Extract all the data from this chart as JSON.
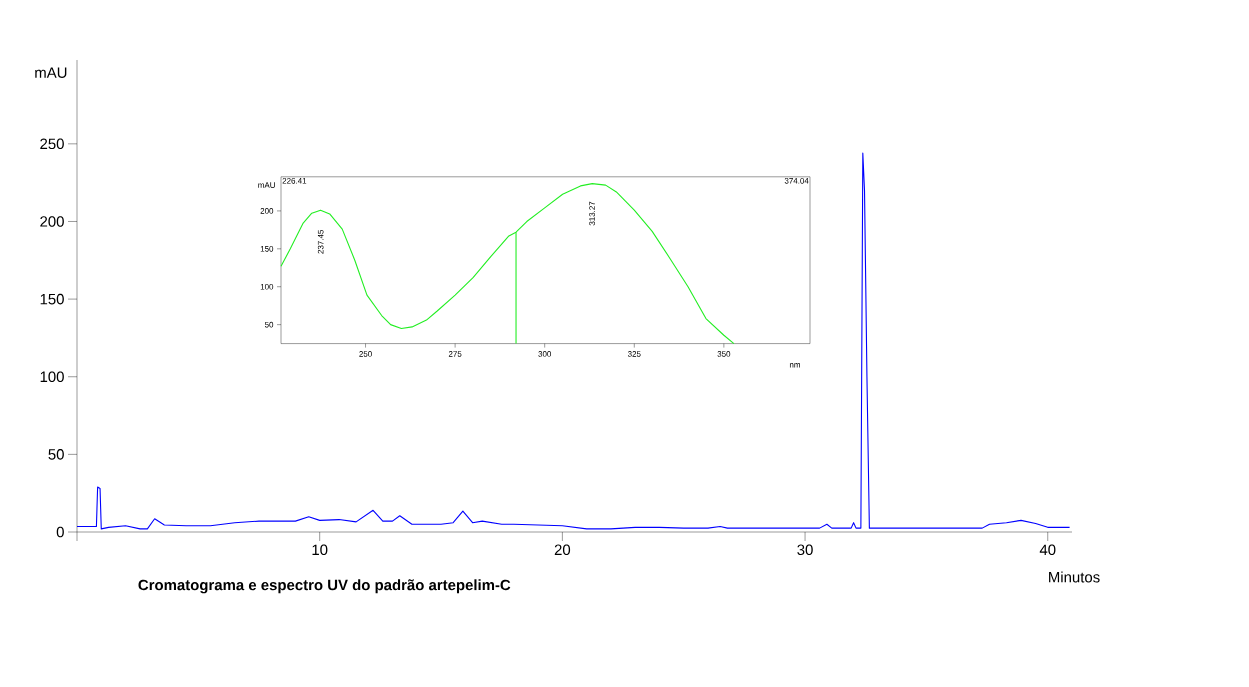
{
  "chart_data": [
    {
      "type": "line",
      "xlabel": "Minutos",
      "ylabel": "mAU",
      "annotations": [
        "**Cromatograma e espectro UV do padrão artepelim-C**"
      ],
      "series": [
        {
          "color": "#0000ff",
          "x": [
            0,
            0.8,
            0.85,
            0.95,
            1.0,
            1.3,
            2,
            2.6,
            2.9,
            3.2,
            3.6,
            4.5,
            5.5,
            6.5,
            7.5,
            9.0,
            9.55,
            10,
            10.8,
            11.5,
            12.2,
            12.6,
            13.0,
            13.3,
            13.8,
            15,
            15.5,
            15.9,
            16.3,
            16.7,
            17.5,
            18,
            20,
            21,
            22,
            23,
            24,
            25,
            26,
            26.5,
            26.8,
            30.6,
            30.9,
            31.1,
            31.9,
            32.0,
            32.1,
            32.3,
            32.38,
            32.45,
            32.55,
            32.65,
            37.3,
            37.6,
            38.3,
            38.9,
            39.5,
            40,
            40.9
          ],
          "values": [
            3.5,
            3.5,
            29,
            28,
            2,
            3,
            4,
            2,
            2,
            8.5,
            4.5,
            4,
            4,
            6,
            7,
            7,
            9.8,
            7.5,
            8,
            6.5,
            14,
            7,
            7,
            10.5,
            5,
            5,
            6,
            13.5,
            6,
            7,
            5,
            5,
            4,
            2,
            2,
            3,
            3,
            2.5,
            2.5,
            3.5,
            2.5,
            2.5,
            5,
            2.5,
            2.5,
            6,
            2.5,
            2.5,
            244,
            220,
            100,
            2.5,
            2.5,
            5,
            6,
            7.5,
            5.5,
            3,
            3
          ]
        }
      ],
      "xlim": [
        0,
        41
      ],
      "ylim": [
        0,
        304
      ],
      "xticks": [
        {
          "value": 0,
          "label": null
        },
        10,
        20,
        30,
        40
      ],
      "yticks": [
        0,
        50,
        100,
        150,
        200,
        250
      ]
    },
    {
      "type": "line",
      "xlabel": "nm",
      "ylabel": "mAU",
      "annotations": [
        "226.41",
        "374.04",
        "237.45",
        "313.27"
      ],
      "series": [
        {
          "color": "#22ee22",
          "x": [
            226.41,
            229,
            232.6,
            235,
            237.45,
            240,
            243.5,
            247,
            250.4,
            254.5,
            257,
            260,
            263,
            267,
            270,
            275,
            280,
            285,
            290,
            292,
            295,
            300,
            305,
            310,
            313.27,
            317,
            320,
            325,
            330,
            335,
            340,
            345,
            350,
            352.8
          ],
          "values": [
            127,
            150,
            184,
            197,
            201,
            196,
            176,
            135,
            89,
            62,
            50,
            45,
            47,
            56,
            68,
            89,
            112,
            140,
            167,
            172,
            186,
            204,
            222,
            233,
            236,
            234,
            225,
            201,
            173,
            137,
            100,
            58,
            36,
            25
          ]
        },
        {
          "color": "#22ee22",
          "x": [
            292,
            292
          ],
          "values": [
            25,
            172
          ]
        }
      ],
      "xlim": [
        226.41,
        374.04
      ],
      "ylim": [
        25,
        245
      ],
      "xticks": [
        250,
        275,
        300,
        325,
        350
      ],
      "yticks": [
        50,
        100,
        150,
        200
      ]
    }
  ]
}
